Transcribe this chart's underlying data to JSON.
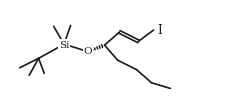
{
  "bg_color": "#ffffff",
  "line_color": "#1a1a1a",
  "line_width": 1.2,
  "text_color": "#1a1a1a",
  "Si_label": "Si",
  "O_label": "O",
  "I_label": "I",
  "font_size_si": 7.5,
  "font_size_o": 7.5,
  "font_size_i": 8.5,
  "figsize": [
    2.26,
    1.13
  ],
  "dpi": 100,
  "xlim": [
    0,
    11
  ],
  "ylim": [
    0,
    6
  ]
}
